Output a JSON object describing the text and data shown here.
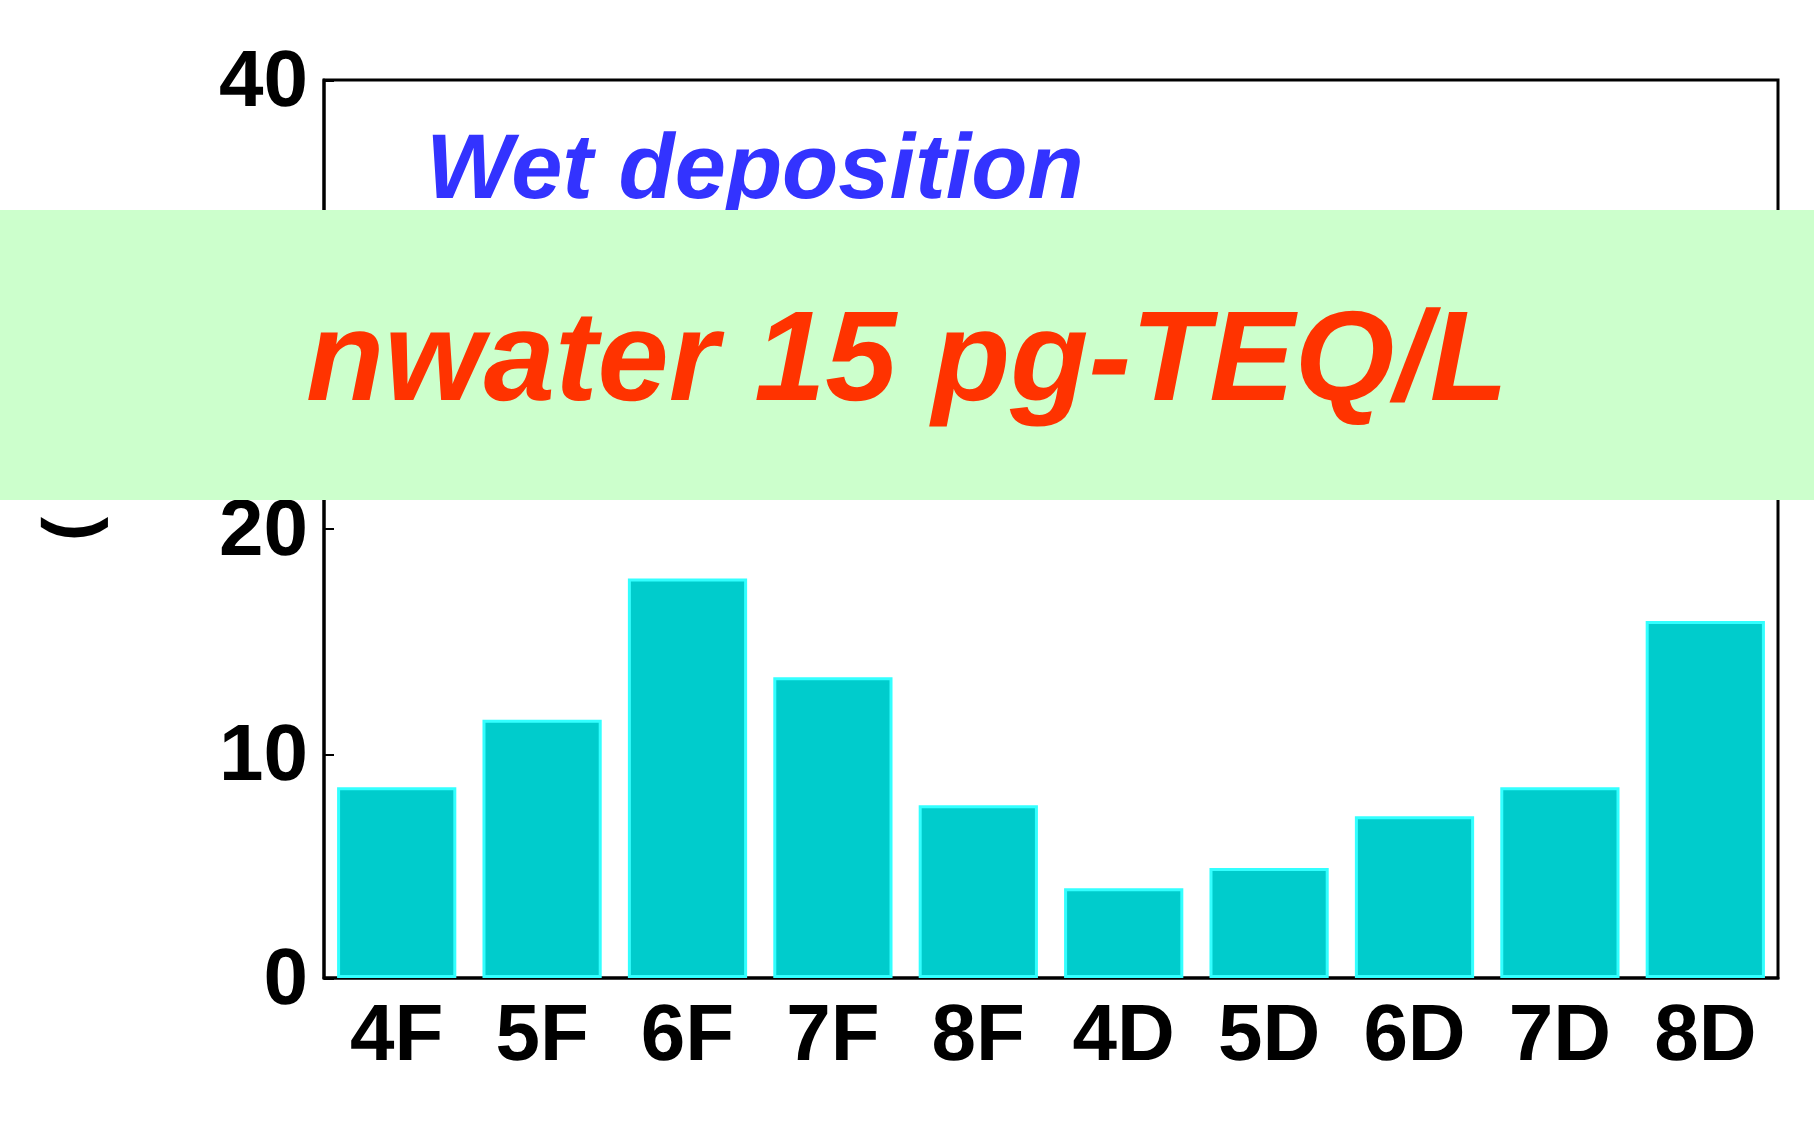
{
  "chart_data": {
    "type": "bar",
    "ylabel": "(",
    "categories": [
      "4F",
      "5F",
      "6F",
      "7F",
      "8F",
      "4D",
      "5D",
      "6D",
      "7D",
      "8D"
    ],
    "values": [
      8.5,
      11.5,
      17.8,
      13.4,
      7.7,
      4.0,
      4.9,
      7.2,
      8.5,
      15.9
    ],
    "color": "#00cccc",
    "ylim": [
      0,
      40
    ],
    "yticks": [
      0,
      10,
      20,
      {
        "value": 30,
        "label": null
      },
      40
    ],
    "grid": false,
    "annotations": [
      "Wet deposition",
      "nwater 15 pg-TEQ/L"
    ]
  }
}
